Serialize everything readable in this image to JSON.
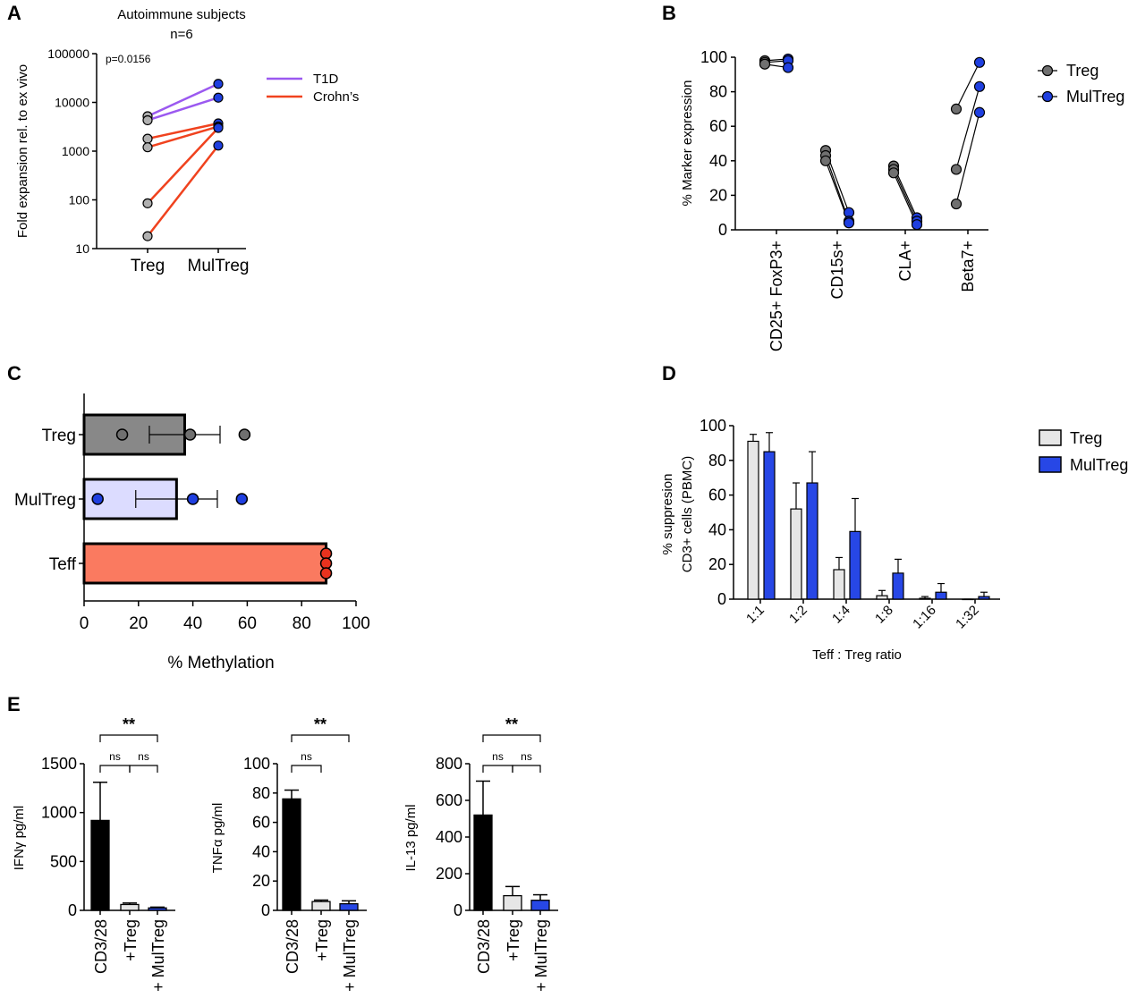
{
  "panels": {
    "a": "A",
    "b": "B",
    "c": "C",
    "d": "D",
    "e": "E"
  },
  "colors": {
    "t1d": "#9b59f0",
    "crohns": "#f0421e",
    "treg_point": "#b0b0b0",
    "multreg_point": "#1f3fe0",
    "treg_dark": "#707070",
    "teff_bar": "#fa7a60",
    "teff_point": "#e8321e",
    "multreg_bar_c": "#dcdcff",
    "treg_bar_c": "#888888",
    "treg_bar_d": "#e6e6e6",
    "multreg_bar_d": "#2747e6",
    "cd328_bar": "#000000"
  },
  "chart_data": [
    {
      "id": "A",
      "type": "line",
      "title": "Autoimmune subjects",
      "subtitle": "n=6",
      "annotation": "p=0.0156",
      "ylabel": "Fold expansion rel. to ex vivo",
      "yscale": "log",
      "ylim": [
        10,
        100000
      ],
      "yticks": [
        "10",
        "100",
        "1000",
        "10000",
        "100000"
      ],
      "categories": [
        "Treg",
        "MulTreg"
      ],
      "legend": [
        "T1D",
        "Crohn’s"
      ],
      "series": [
        {
          "name": "T1D",
          "values": [
            5200,
            24000
          ]
        },
        {
          "name": "T1D",
          "values": [
            4300,
            12500
          ]
        },
        {
          "name": "Crohn’s",
          "values": [
            1800,
            3700
          ]
        },
        {
          "name": "Crohn’s",
          "values": [
            1200,
            3200
          ]
        },
        {
          "name": "Crohn’s",
          "values": [
            85,
            3000
          ]
        },
        {
          "name": "Crohn’s",
          "values": [
            18,
            1300
          ]
        }
      ]
    },
    {
      "id": "B",
      "type": "scatter",
      "ylabel": "% Marker expression",
      "ylim": [
        0,
        100
      ],
      "yticks": [
        "0",
        "20",
        "40",
        "60",
        "80",
        "100"
      ],
      "categories": [
        "CD25+ FoxP3+",
        "CD15s+",
        "CLA+",
        "Beta7+"
      ],
      "legend": [
        "Treg",
        "MulTreg"
      ],
      "pairs": [
        [
          [
            98,
            99
          ],
          [
            97,
            98
          ],
          [
            96,
            94
          ]
        ],
        [
          [
            46,
            10
          ],
          [
            43,
            5
          ],
          [
            40,
            4
          ]
        ],
        [
          [
            37,
            7
          ],
          [
            35,
            5
          ],
          [
            33,
            3
          ]
        ],
        [
          [
            70,
            97
          ],
          [
            35,
            83
          ],
          [
            15,
            68
          ]
        ]
      ]
    },
    {
      "id": "C",
      "type": "bar",
      "orientation": "horizontal",
      "xlabel": "% Methylation",
      "xlim": [
        0,
        100
      ],
      "xticks": [
        "0",
        "20",
        "40",
        "60",
        "80",
        "100"
      ],
      "categories": [
        "Treg",
        "MulTreg",
        "Teff"
      ],
      "values": [
        37,
        34,
        89
      ],
      "errors": [
        13,
        15,
        0
      ],
      "points": [
        [
          14,
          39,
          59
        ],
        [
          5,
          40,
          58
        ],
        [
          89,
          89,
          89
        ]
      ]
    },
    {
      "id": "D",
      "type": "bar",
      "ylabel": "% suppresion",
      "ylabel2": "CD3+ cells (PBMC)",
      "xlabel": "Teff : Treg ratio",
      "ylim": [
        0,
        100
      ],
      "yticks": [
        "0",
        "20",
        "40",
        "60",
        "80",
        "100"
      ],
      "categories": [
        "1:1",
        "1:2",
        "1:4",
        "1:8",
        "1:16",
        "1:32"
      ],
      "legend": [
        "Treg",
        "MulTreg"
      ],
      "series": [
        {
          "name": "Treg",
          "values": [
            91,
            52,
            17,
            2,
            0.5,
            0
          ],
          "errors": [
            4,
            15,
            7,
            3,
            1,
            0
          ]
        },
        {
          "name": "MulTreg",
          "values": [
            85,
            67,
            39,
            15,
            4,
            1.5
          ],
          "errors": [
            11,
            18,
            19,
            8,
            5,
            2.5
          ]
        }
      ]
    },
    {
      "id": "E1",
      "type": "bar",
      "ylabel": "IFNγ pg/ml",
      "ylim": [
        0,
        1500
      ],
      "yticks": [
        "0",
        "500",
        "1000",
        "1500"
      ],
      "categories": [
        "CD3/28",
        "+Treg",
        "+ MulTreg"
      ],
      "values": [
        920,
        60,
        25
      ],
      "errors": [
        390,
        15,
        8
      ],
      "brackets": [
        [
          "CD3/28",
          "+ MulTreg",
          "**"
        ],
        [
          "CD3/28",
          "+Treg",
          "ns"
        ],
        [
          "+Treg",
          "+ MulTreg",
          "ns"
        ]
      ]
    },
    {
      "id": "E2",
      "type": "bar",
      "ylabel": "TNFα pg/ml",
      "ylim": [
        0,
        100
      ],
      "yticks": [
        "0",
        "20",
        "40",
        "60",
        "80",
        "100"
      ],
      "categories": [
        "CD3/28",
        "+Treg",
        "+ MulTreg"
      ],
      "values": [
        76,
        6,
        4.5
      ],
      "errors": [
        6,
        1,
        2
      ],
      "brackets": [
        [
          "CD3/28",
          "+ MulTreg",
          "**"
        ],
        [
          "CD3/28",
          "+Treg",
          "ns"
        ]
      ]
    },
    {
      "id": "E3",
      "type": "bar",
      "ylabel": "IL-13 pg/ml",
      "ylim": [
        0,
        800
      ],
      "yticks": [
        "0",
        "200",
        "400",
        "600",
        "800"
      ],
      "categories": [
        "CD3/28",
        "+Treg",
        "+ MulTreg"
      ],
      "values": [
        520,
        80,
        55
      ],
      "errors": [
        185,
        50,
        30
      ],
      "brackets": [
        [
          "CD3/28",
          "+ MulTreg",
          "**"
        ],
        [
          "CD3/28",
          "+Treg",
          "ns"
        ],
        [
          "+Treg",
          "+ MulTreg",
          "ns"
        ]
      ]
    }
  ]
}
